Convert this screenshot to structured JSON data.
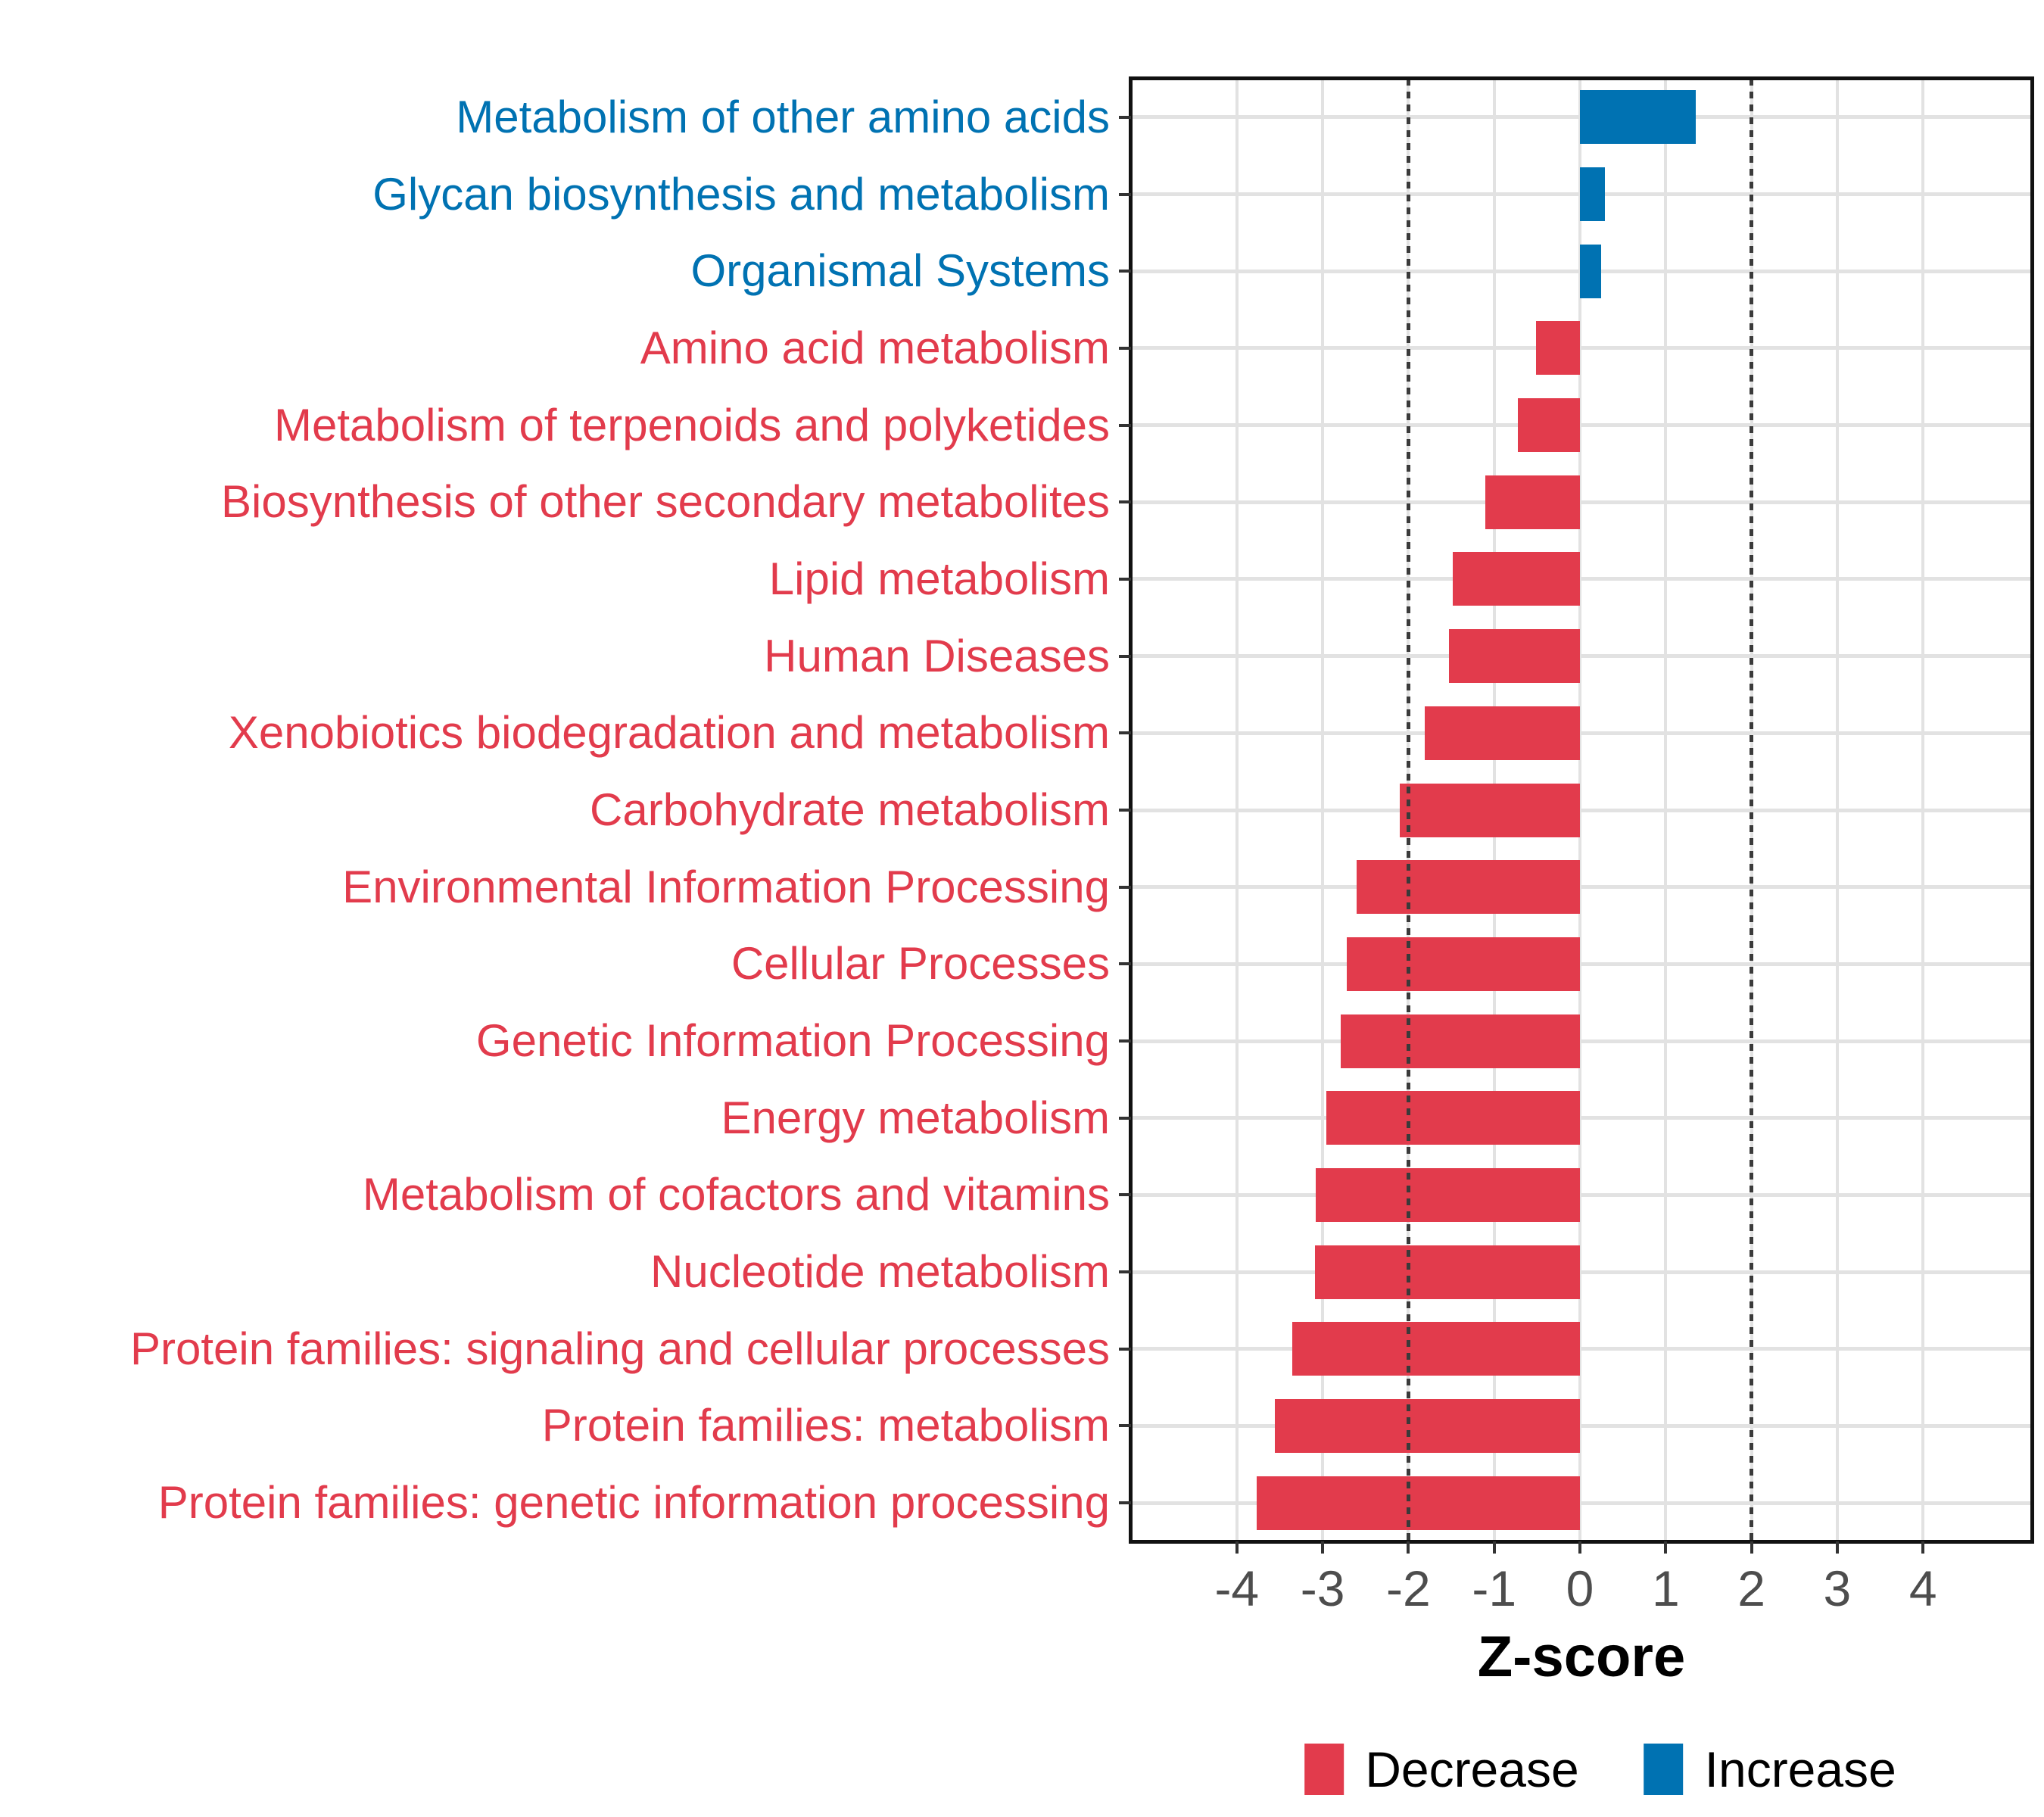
{
  "chart_data": {
    "type": "bar",
    "orientation": "horizontal",
    "title": "",
    "xlabel": "Z-score",
    "ylabel": "",
    "x_ticks": [
      -4,
      -3,
      -2,
      -1,
      0,
      1,
      2,
      3,
      4
    ],
    "xlim": [
      -5.25,
      5.25
    ],
    "grid": true,
    "reference_lines": {
      "values": [
        -2,
        2
      ],
      "style": "dotted",
      "color": "#3A3A3A"
    },
    "legend_position": "bottom",
    "bar_width_fraction": 0.7,
    "rows": [
      {
        "label": "Metabolism of other amino acids",
        "value": 1.35,
        "direction": "Increase"
      },
      {
        "label": "Glycan biosynthesis and metabolism",
        "value": 0.29,
        "direction": "Increase"
      },
      {
        "label": "Organismal Systems",
        "value": 0.25,
        "direction": "Increase"
      },
      {
        "label": "Amino acid metabolism",
        "value": -0.51,
        "direction": "Decrease"
      },
      {
        "label": "Metabolism of terpenoids and polyketides",
        "value": -0.72,
        "direction": "Decrease"
      },
      {
        "label": "Biosynthesis of other secondary metabolites",
        "value": -1.1,
        "direction": "Decrease"
      },
      {
        "label": "Lipid metabolism",
        "value": -1.48,
        "direction": "Decrease"
      },
      {
        "label": "Human Diseases",
        "value": -1.53,
        "direction": "Decrease"
      },
      {
        "label": "Xenobiotics biodegradation and metabolism",
        "value": -1.81,
        "direction": "Decrease"
      },
      {
        "label": "Carbohydrate metabolism",
        "value": -2.1,
        "direction": "Decrease"
      },
      {
        "label": "Environmental Information Processing",
        "value": -2.6,
        "direction": "Decrease"
      },
      {
        "label": "Cellular Processes",
        "value": -2.72,
        "direction": "Decrease"
      },
      {
        "label": "Genetic Information Processing",
        "value": -2.79,
        "direction": "Decrease"
      },
      {
        "label": "Energy metabolism",
        "value": -2.96,
        "direction": "Decrease"
      },
      {
        "label": "Metabolism of cofactors and vitamins",
        "value": -3.08,
        "direction": "Decrease"
      },
      {
        "label": "Nucleotide metabolism",
        "value": -3.09,
        "direction": "Decrease"
      },
      {
        "label": "Protein families: signaling and cellular processes",
        "value": -3.35,
        "direction": "Decrease"
      },
      {
        "label": "Protein families: metabolism",
        "value": -3.56,
        "direction": "Decrease"
      },
      {
        "label": "Protein families: genetic information processing",
        "value": -3.77,
        "direction": "Decrease"
      }
    ],
    "legend": [
      {
        "label": "Decrease",
        "color": "#E23B4C"
      },
      {
        "label": "Increase",
        "color": "#0072B2"
      }
    ],
    "colors": {
      "decrease": "#E23B4C",
      "increase": "#0072B2",
      "gridline": "#E2E2E2",
      "panel_border": "#111111",
      "axis_tick_text": "#4D4D4D"
    }
  }
}
